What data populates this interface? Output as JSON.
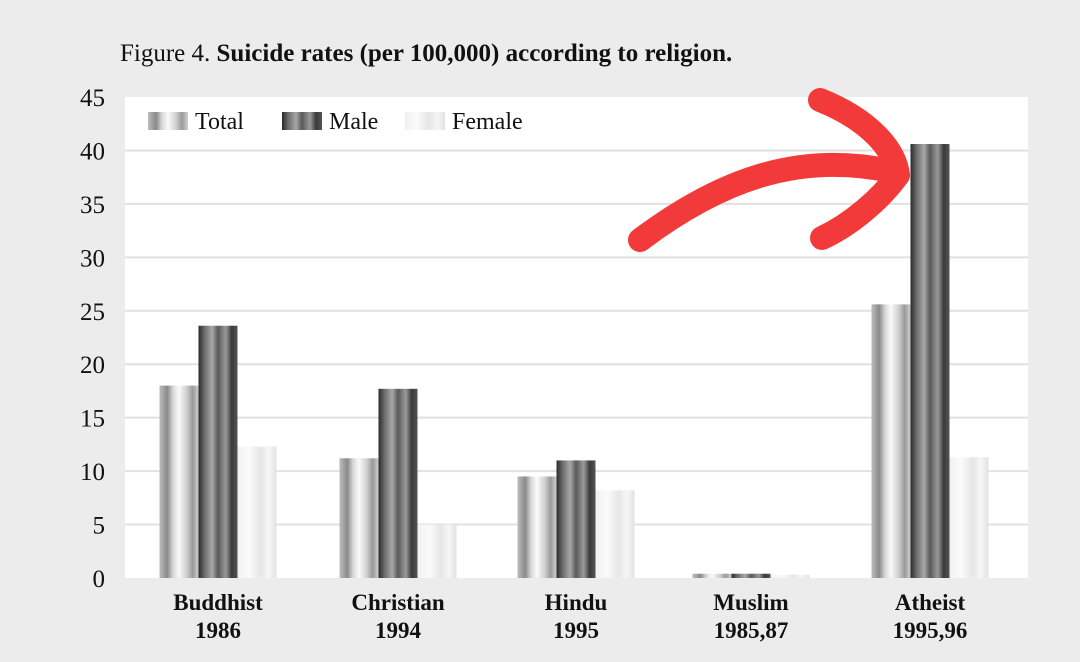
{
  "chart_data": {
    "type": "bar",
    "title_prefix": "Figure 4.",
    "title": "Suicide rates (per 100,000) according to religion.",
    "categories": [
      [
        "Buddhist",
        "1986"
      ],
      [
        "Christian",
        "1994"
      ],
      [
        "Hindu",
        "1995"
      ],
      [
        "Muslim",
        "1985,87"
      ],
      [
        "Atheist",
        "1995,96"
      ]
    ],
    "series": [
      {
        "name": "Total",
        "values": [
          18.0,
          11.2,
          9.5,
          0.4,
          25.6
        ]
      },
      {
        "name": "Male",
        "values": [
          23.6,
          17.7,
          11.0,
          0.4,
          40.6
        ]
      },
      {
        "name": "Female",
        "values": [
          12.3,
          5.0,
          8.2,
          0.3,
          11.3
        ]
      }
    ],
    "ylim": [
      0,
      45
    ],
    "yticks": [
      0,
      5,
      10,
      15,
      20,
      25,
      30,
      35,
      40,
      45
    ],
    "grid": true,
    "legend_position": "top-left",
    "annotation": "red hand-drawn arrow pointing at Atheist Male bar",
    "colors": {
      "arrow": "#f23a3a",
      "background": "#ececec",
      "plot": "#ffffff",
      "grid": "#e0e0e0"
    }
  }
}
